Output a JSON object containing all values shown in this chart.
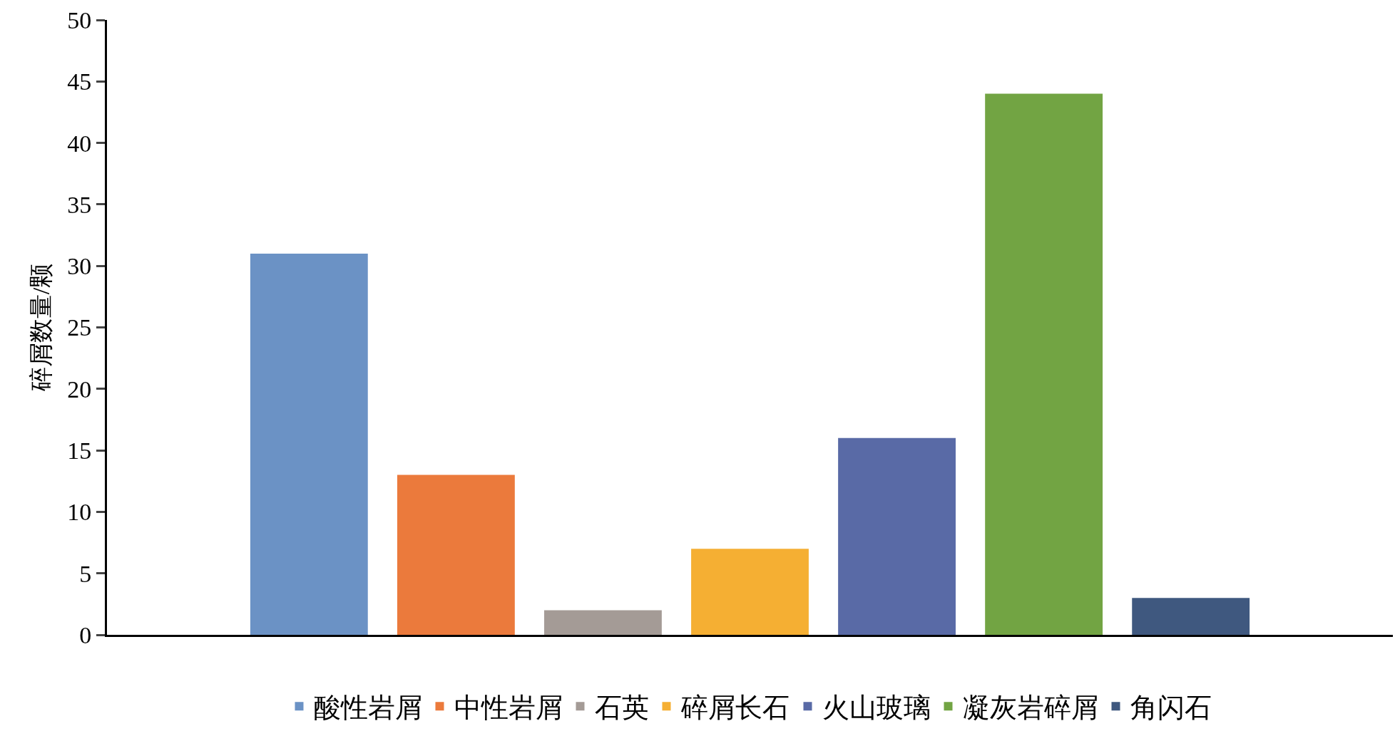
{
  "chart_data": {
    "type": "bar",
    "ylabel": "碎屑数量/颗",
    "categories": [
      null
    ],
    "series": [
      {
        "name": "酸性岩屑",
        "color": "#6b92c5",
        "values": [
          31
        ]
      },
      {
        "name": "中性岩屑",
        "color": "#eb7a3c",
        "values": [
          13
        ]
      },
      {
        "name": "石英",
        "color": "#a49b96",
        "values": [
          2
        ]
      },
      {
        "name": "碎屑长石",
        "color": "#f5af33",
        "values": [
          7
        ]
      },
      {
        "name": "火山玻璃",
        "color": "#596aa6",
        "values": [
          16
        ]
      },
      {
        "name": "凝灰岩碎屑",
        "color": "#72a443",
        "values": [
          44
        ]
      },
      {
        "name": "角闪石",
        "color": "#3f587f",
        "values": [
          3
        ]
      }
    ],
    "ylim": [
      0,
      50
    ],
    "yticks": [
      0,
      5,
      10,
      15,
      20,
      25,
      30,
      35,
      40,
      45,
      50
    ],
    "legend": "bottom",
    "tick_labels": "y"
  }
}
